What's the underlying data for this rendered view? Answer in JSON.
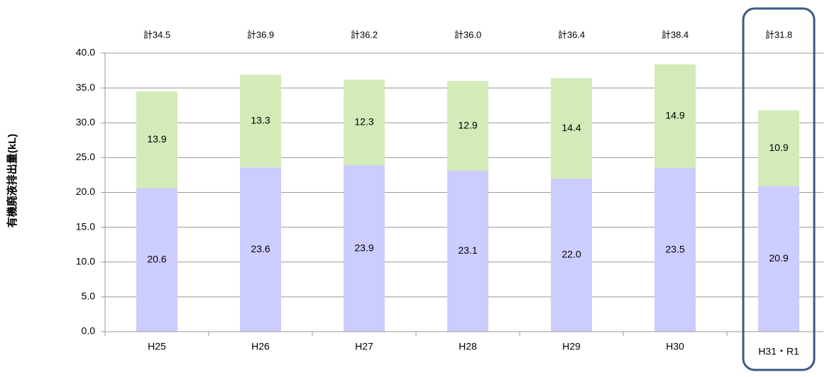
{
  "chart_data": {
    "type": "stacked_bar",
    "y_label": "有機廃液排出量(kL)",
    "categories": [
      "H25",
      "H26",
      "H27",
      "H28",
      "H29",
      "H30",
      "H31・R1"
    ],
    "series": [
      {
        "color": "#ccccff",
        "values": [
          20.6,
          23.6,
          23.9,
          23.1,
          22.0,
          23.5,
          20.9
        ],
        "value_labels": [
          "20.6",
          "23.6",
          "23.9",
          "23.1",
          "22.0",
          "23.5",
          "20.9"
        ]
      },
      {
        "color": "#d2ebb9",
        "values": [
          13.9,
          13.3,
          12.3,
          12.9,
          14.4,
          14.9,
          10.9
        ],
        "value_labels": [
          "13.9",
          "13.3",
          "12.3",
          "12.9",
          "14.4",
          "14.9",
          "10.9"
        ]
      }
    ],
    "total_labels": [
      "計34.5",
      "計36.9",
      "計36.2",
      "計36.0",
      "計36.4",
      "計38.4",
      "計31.8"
    ],
    "ylim": [
      0,
      40
    ],
    "yticks": [
      {
        "value": 0,
        "label": "0.0"
      },
      {
        "value": 5,
        "label": "5.0"
      },
      {
        "value": 10,
        "label": "10.0"
      },
      {
        "value": 15,
        "label": "15.0"
      },
      {
        "value": 20,
        "label": "20.0"
      },
      {
        "value": 25,
        "label": "25.0"
      },
      {
        "value": 30,
        "label": "30.0"
      },
      {
        "value": 35,
        "label": "35.0"
      },
      {
        "value": 40,
        "label": "40.0"
      }
    ],
    "grid": true
  }
}
